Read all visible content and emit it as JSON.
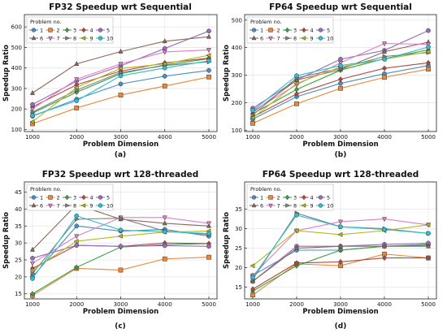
{
  "figure": {
    "sublabels": [
      "(a)",
      "(b)",
      "(c)",
      "(d)"
    ],
    "legend_title": "Problem no."
  },
  "chart_data": [
    {
      "type": "line",
      "title": "FP32 Speedup wrt Sequential",
      "xlabel": "Problem Dimension",
      "ylabel": "Speedup Ratio",
      "x": [
        1000,
        2000,
        3000,
        4000,
        5000
      ],
      "xticks": [
        "1000",
        "2000",
        "3000",
        "4000",
        "5000"
      ],
      "ylim": [
        90,
        660
      ],
      "yticks": [
        100,
        200,
        300,
        400,
        500,
        600
      ],
      "legend": "top-left",
      "grid": true,
      "series": [
        {
          "name": "1",
          "values": [
            165,
            248,
            322,
            360,
            388
          ]
        },
        {
          "name": "2",
          "values": [
            128,
            205,
            268,
            312,
            356
          ]
        },
        {
          "name": "3",
          "values": [
            180,
            282,
            372,
            415,
            445
          ]
        },
        {
          "name": "4",
          "values": [
            210,
            318,
            385,
            425,
            448
          ]
        },
        {
          "name": "5",
          "values": [
            222,
            336,
            410,
            495,
            580
          ]
        },
        {
          "name": "6",
          "values": [
            278,
            420,
            480,
            530,
            552
          ]
        },
        {
          "name": "7",
          "values": [
            200,
            345,
            420,
            478,
            488
          ]
        },
        {
          "name": "8",
          "values": [
            185,
            292,
            378,
            412,
            430
          ]
        },
        {
          "name": "9",
          "values": [
            138,
            305,
            398,
            420,
            462
          ]
        },
        {
          "name": "10",
          "values": [
            168,
            240,
            362,
            400,
            435
          ]
        }
      ]
    },
    {
      "type": "line",
      "title": "FP64 Speedup wrt Sequential",
      "xlabel": "Problem Dimension",
      "ylabel": "Speedup Ratio",
      "x": [
        1000,
        2000,
        3000,
        4000,
        5000
      ],
      "xticks": [
        "1000",
        "2000",
        "3000",
        "4000",
        "5000"
      ],
      "ylim": [
        95,
        520
      ],
      "yticks": [
        100,
        200,
        300,
        400,
        500
      ],
      "legend": "top-left",
      "grid": true,
      "series": [
        {
          "name": "1",
          "values": [
            140,
            222,
            270,
            305,
            335
          ]
        },
        {
          "name": "2",
          "values": [
            125,
            196,
            252,
            292,
            322
          ]
        },
        {
          "name": "3",
          "values": [
            160,
            248,
            318,
            360,
            392
          ]
        },
        {
          "name": "4",
          "values": [
            148,
            232,
            285,
            325,
            345
          ]
        },
        {
          "name": "5",
          "values": [
            180,
            282,
            358,
            390,
            462
          ]
        },
        {
          "name": "6",
          "values": [
            165,
            282,
            320,
            385,
            420
          ]
        },
        {
          "name": "7",
          "values": [
            170,
            265,
            345,
            415,
            412
          ]
        },
        {
          "name": "8",
          "values": [
            155,
            290,
            325,
            368,
            382
          ]
        },
        {
          "name": "9",
          "values": [
            145,
            270,
            330,
            358,
            385
          ]
        },
        {
          "name": "10",
          "values": [
            172,
            298,
            335,
            358,
            402
          ]
        }
      ]
    },
    {
      "type": "line",
      "title": "FP32 Speedup wrt 128-threaded",
      "xlabel": "Problem Dimension",
      "ylabel": "Speedup Ratio",
      "x": [
        1000,
        2000,
        3000,
        4000,
        5000
      ],
      "xticks": [
        "1000",
        "2000",
        "3000",
        "4000",
        "5000"
      ],
      "ylim": [
        13.5,
        48
      ],
      "yticks": [
        15,
        20,
        25,
        30,
        35,
        40,
        45
      ],
      "legend": "top-left",
      "grid": true,
      "series": [
        {
          "name": "1",
          "values": [
            20,
            35,
            33.5,
            34,
            32
          ]
        },
        {
          "name": "2",
          "values": [
            14.5,
            22.5,
            22,
            25.3,
            25.8
          ]
        },
        {
          "name": "3",
          "values": [
            15,
            22.8,
            28.8,
            29.5,
            29.8
          ]
        },
        {
          "name": "4",
          "values": [
            22.5,
            29.3,
            29,
            30,
            29.8
          ]
        },
        {
          "name": "5",
          "values": [
            25.5,
            29.3,
            29,
            29.2,
            29
          ]
        },
        {
          "name": "6",
          "values": [
            28,
            41.3,
            37,
            35.8,
            35
          ]
        },
        {
          "name": "7",
          "values": [
            24,
            32,
            37.5,
            37.5,
            35.8
          ]
        },
        {
          "name": "8",
          "values": [
            21,
            37,
            37.3,
            33.5,
            32.5
          ]
        },
        {
          "name": "9",
          "values": [
            22,
            30.5,
            32,
            33.2,
            33.5
          ]
        },
        {
          "name": "10",
          "values": [
            19.5,
            38,
            33.8,
            33.3,
            32.8
          ]
        }
      ]
    },
    {
      "type": "line",
      "title": "FP64 Speedup wrt 128-threaded",
      "xlabel": "Problem Dimension",
      "ylabel": "Speedup Ratio",
      "x": [
        1000,
        2000,
        3000,
        4000,
        5000
      ],
      "xticks": [
        "1000",
        "2000",
        "3000",
        "4000",
        "5000"
      ],
      "ylim": [
        12,
        42
      ],
      "yticks": [
        15,
        20,
        25,
        30,
        35
      ],
      "legend": "top-left",
      "grid": true,
      "series": [
        {
          "name": "1",
          "values": [
            18,
            24.5,
            24.5,
            25.5,
            25.8
          ]
        },
        {
          "name": "2",
          "values": [
            13,
            21,
            20.5,
            23.5,
            22.5
          ]
        },
        {
          "name": "3",
          "values": [
            14,
            20.5,
            24.5,
            25.5,
            26
          ]
        },
        {
          "name": "4",
          "values": [
            14.5,
            21.2,
            21.5,
            22.5,
            22.5
          ]
        },
        {
          "name": "5",
          "values": [
            16.5,
            25.5,
            25.5,
            26,
            26.3
          ]
        },
        {
          "name": "6",
          "values": [
            16.5,
            25,
            25.5,
            25.5,
            25.5
          ]
        },
        {
          "name": "7",
          "values": [
            18,
            29.5,
            31.8,
            32.5,
            31
          ]
        },
        {
          "name": "8",
          "values": [
            17,
            34,
            30.5,
            30,
            28.8
          ]
        },
        {
          "name": "9",
          "values": [
            20.5,
            29.5,
            28.5,
            29.5,
            31
          ]
        },
        {
          "name": "10",
          "values": [
            17.5,
            33.5,
            30.5,
            29.8,
            28.8
          ]
        }
      ]
    }
  ],
  "style": {
    "colors": [
      "#4a8ec4",
      "#e9873a",
      "#3aa142",
      "#b04a40",
      "#9a6cbc",
      "#8a6a5a",
      "#e07ec6",
      "#7f7f7f",
      "#b5b820",
      "#2bbfcf"
    ],
    "markers": [
      "circle",
      "square",
      "diamond",
      "diamond",
      "circle",
      "triangle-up",
      "triangle-down",
      "triangle-right",
      "triangle-left",
      "circle"
    ],
    "frame_color": "#222222",
    "grid_color": "#e6e6e6"
  }
}
